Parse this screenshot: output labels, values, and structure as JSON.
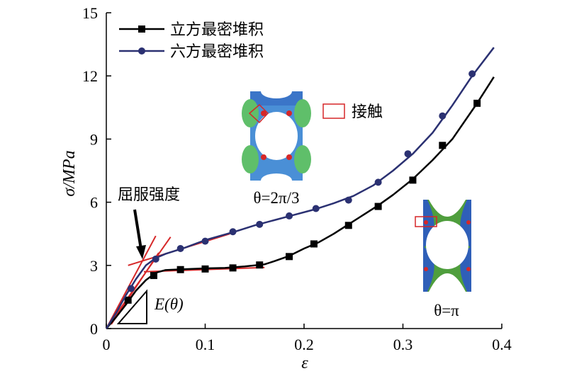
{
  "chart_data": {
    "type": "line",
    "title": "",
    "xlabel": "ε",
    "ylabel": "σ/MPa",
    "xlim": [
      0,
      0.4
    ],
    "ylim": [
      0,
      15
    ],
    "x_ticks": [
      "0",
      "0.1",
      "0.2",
      "0.3",
      "0.4"
    ],
    "y_ticks": [
      "0",
      "3",
      "6",
      "9",
      "12",
      "15"
    ],
    "grid": false,
    "legend_position": "top-left",
    "series": [
      {
        "name": "立方最密堆积",
        "color": "#000000",
        "marker": "square",
        "curve_x": [
          0,
          0.01,
          0.02,
          0.03,
          0.04,
          0.05,
          0.06,
          0.08,
          0.1,
          0.12,
          0.14,
          0.16,
          0.17,
          0.185,
          0.2,
          0.215,
          0.23,
          0.245,
          0.26,
          0.275,
          0.29,
          0.31,
          0.33,
          0.35,
          0.375,
          0.392
        ],
        "curve_y": [
          0,
          0.55,
          1.15,
          1.8,
          2.3,
          2.65,
          2.78,
          2.82,
          2.86,
          2.88,
          2.95,
          3.05,
          3.2,
          3.45,
          3.8,
          4.1,
          4.5,
          4.95,
          5.4,
          5.85,
          6.35,
          7.1,
          8.0,
          9.0,
          10.7,
          11.95
        ],
        "marker_x": [
          0.022,
          0.048,
          0.075,
          0.1,
          0.128,
          0.155,
          0.185,
          0.21,
          0.245,
          0.275,
          0.31,
          0.34,
          0.375
        ],
        "marker_y": [
          1.35,
          2.52,
          2.8,
          2.83,
          2.88,
          3.02,
          3.42,
          4.02,
          4.9,
          5.8,
          7.05,
          8.7,
          10.7
        ]
      },
      {
        "name": "六方最密堆积",
        "color": "#2b3172",
        "marker": "circle",
        "curve_x": [
          0,
          0.01,
          0.02,
          0.03,
          0.04,
          0.05,
          0.06,
          0.08,
          0.1,
          0.13,
          0.15,
          0.17,
          0.19,
          0.21,
          0.23,
          0.25,
          0.27,
          0.29,
          0.31,
          0.33,
          0.35,
          0.37,
          0.392
        ],
        "curve_y": [
          0,
          0.75,
          1.6,
          2.35,
          3.0,
          3.35,
          3.55,
          3.85,
          4.2,
          4.6,
          4.9,
          5.15,
          5.4,
          5.65,
          5.95,
          6.3,
          6.8,
          7.5,
          8.3,
          9.3,
          10.6,
          12.0,
          13.35
        ],
        "marker_x": [
          0.025,
          0.05,
          0.075,
          0.1,
          0.128,
          0.155,
          0.185,
          0.212,
          0.245,
          0.275,
          0.305,
          0.34,
          0.37
        ],
        "marker_y": [
          1.9,
          3.3,
          3.8,
          4.15,
          4.6,
          4.95,
          5.35,
          5.7,
          6.1,
          6.95,
          8.3,
          10.1,
          12.1
        ]
      }
    ],
    "fit_lines": {
      "color": "#d62728",
      "segments": [
        {
          "x1": 0.0,
          "y1": 0.0,
          "x2": 0.05,
          "y2": 4.4
        },
        {
          "x1": 0.0,
          "y1": 0.0,
          "x2": 0.065,
          "y2": 4.35
        },
        {
          "x1": 0.022,
          "y1": 3.0,
          "x2": 0.125,
          "y2": 4.5
        },
        {
          "x1": 0.038,
          "y1": 2.7,
          "x2": 0.16,
          "y2": 2.9
        }
      ],
      "x1_2": {
        "x1": 0.005,
        "y1": 0.2,
        "x2": 0.053,
        "y2": 3.6
      }
    },
    "annotations": {
      "yield_label": "屈服强度",
      "modulus_label": "E(θ)",
      "contact_label": "接触",
      "inset_a_caption": "θ=2π/3",
      "inset_b_caption": "θ=π"
    }
  }
}
